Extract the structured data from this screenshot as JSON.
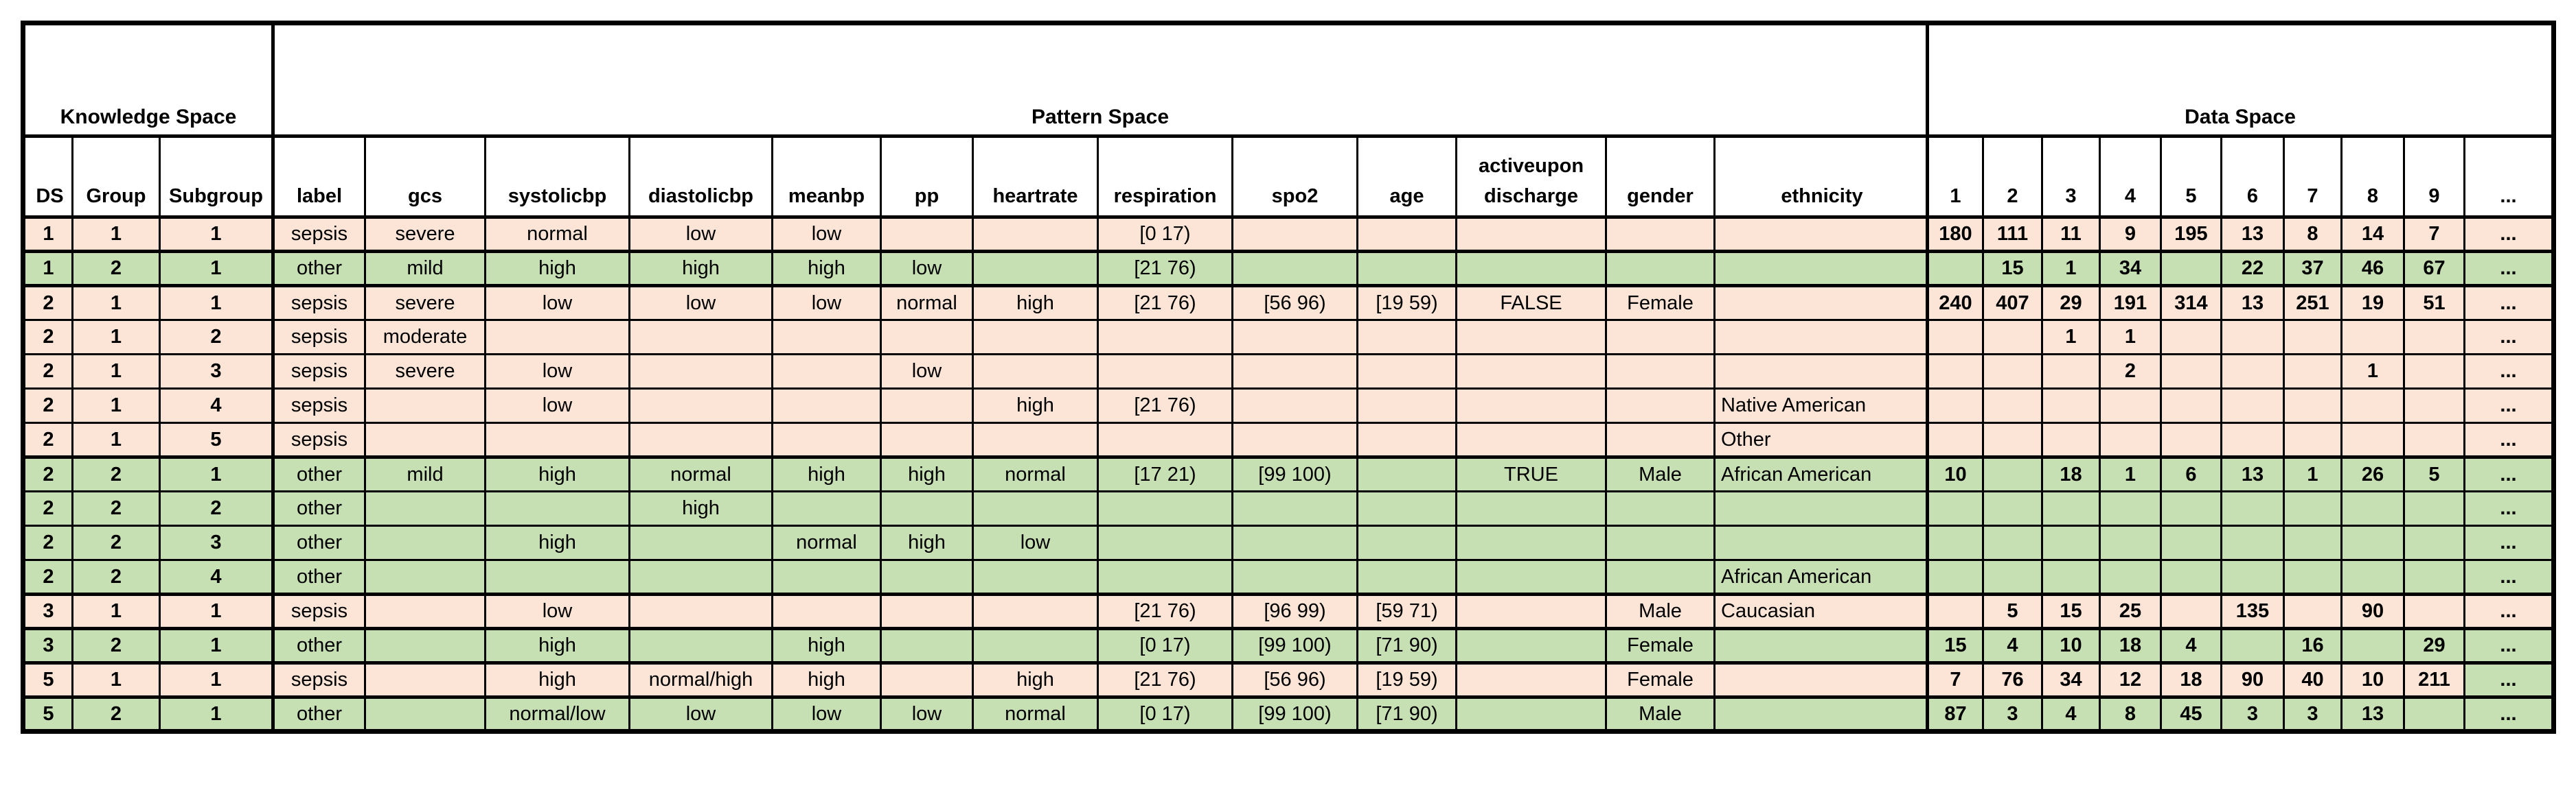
{
  "colors": {
    "sepsis_row": "#fce4d6",
    "other_row": "#c6e0b4",
    "border": "#000000",
    "background": "#ffffff"
  },
  "chart_data": {
    "type": "table",
    "section_headers": [
      {
        "label": "Knowledge Space",
        "colspan": 3
      },
      {
        "label": "Pattern Space",
        "colspan": 13
      },
      {
        "label": "Data Space",
        "colspan": 10
      }
    ],
    "columns": [
      "DS",
      "Group",
      "Subgroup",
      "label",
      "gcs",
      "systolicbp",
      "diastolicbp",
      "meanbp",
      "pp",
      "heartrate",
      "respiration",
      "spo2",
      "age",
      "activeupon\ndischarge",
      "gender",
      "ethnicity",
      "1",
      "2",
      "3",
      "4",
      "5",
      "6",
      "7",
      "8",
      "9",
      "..."
    ],
    "rows": [
      {
        "color": "sepsis",
        "thick_top": true,
        "cells": [
          "1",
          "1",
          "1",
          "sepsis",
          "severe",
          "normal",
          "low",
          "low",
          "",
          "",
          "[0 17)",
          "",
          "",
          "",
          "",
          "",
          "180",
          "111",
          "11",
          "9",
          "195",
          "13",
          "8",
          "14",
          "7",
          "..."
        ]
      },
      {
        "color": "other",
        "thick_top": true,
        "cells": [
          "1",
          "2",
          "1",
          "other",
          "mild",
          "high",
          "high",
          "high",
          "low",
          "",
          "[21 76)",
          "",
          "",
          "",
          "",
          "",
          "",
          "15",
          "1",
          "34",
          "",
          "22",
          "37",
          "46",
          "67",
          "..."
        ]
      },
      {
        "color": "sepsis",
        "thick_top": true,
        "cells": [
          "2",
          "1",
          "1",
          "sepsis",
          "severe",
          "low",
          "low",
          "low",
          "normal",
          "high",
          "[21 76)",
          "[56 96)",
          "[19 59)",
          "FALSE",
          "Female",
          "",
          "240",
          "407",
          "29",
          "191",
          "314",
          "13",
          "251",
          "19",
          "51",
          "..."
        ]
      },
      {
        "color": "sepsis",
        "thick_top": false,
        "cells": [
          "2",
          "1",
          "2",
          "sepsis",
          "moderate",
          "",
          "",
          "",
          "",
          "",
          "",
          "",
          "",
          "",
          "",
          "",
          "",
          "",
          "1",
          "1",
          "",
          "",
          "",
          "",
          "",
          "..."
        ]
      },
      {
        "color": "sepsis",
        "thick_top": false,
        "cells": [
          "2",
          "1",
          "3",
          "sepsis",
          "severe",
          "low",
          "",
          "",
          "low",
          "",
          "",
          "",
          "",
          "",
          "",
          "",
          "",
          "",
          "",
          "2",
          "",
          "",
          "",
          "1",
          "",
          "..."
        ]
      },
      {
        "color": "sepsis",
        "thick_top": false,
        "cells": [
          "2",
          "1",
          "4",
          "sepsis",
          "",
          "low",
          "",
          "",
          "",
          "high",
          "[21 76)",
          "",
          "",
          "",
          "",
          "Native American",
          "",
          "",
          "",
          "",
          "",
          "",
          "",
          "",
          "",
          "..."
        ]
      },
      {
        "color": "sepsis",
        "thick_top": false,
        "cells": [
          "2",
          "1",
          "5",
          "sepsis",
          "",
          "",
          "",
          "",
          "",
          "",
          "",
          "",
          "",
          "",
          "",
          "Other",
          "",
          "",
          "",
          "",
          "",
          "",
          "",
          "",
          "",
          "..."
        ]
      },
      {
        "color": "other",
        "thick_top": true,
        "cells": [
          "2",
          "2",
          "1",
          "other",
          "mild",
          "high",
          "normal",
          "high",
          "high",
          "normal",
          "[17 21)",
          "[99 100)",
          "",
          "TRUE",
          "Male",
          "African American",
          "10",
          "",
          "18",
          "1",
          "6",
          "13",
          "1",
          "26",
          "5",
          "..."
        ]
      },
      {
        "color": "other",
        "thick_top": false,
        "cells": [
          "2",
          "2",
          "2",
          "other",
          "",
          "",
          "high",
          "",
          "",
          "",
          "",
          "",
          "",
          "",
          "",
          "",
          "",
          "",
          "",
          "",
          "",
          "",
          "",
          "",
          "",
          "..."
        ]
      },
      {
        "color": "other",
        "thick_top": false,
        "cells": [
          "2",
          "2",
          "3",
          "other",
          "",
          "high",
          "",
          "normal",
          "high",
          "low",
          "",
          "",
          "",
          "",
          "",
          "",
          "",
          "",
          "",
          "",
          "",
          "",
          "",
          "",
          "",
          "..."
        ]
      },
      {
        "color": "other",
        "thick_top": false,
        "cells": [
          "2",
          "2",
          "4",
          "other",
          "",
          "",
          "",
          "",
          "",
          "",
          "",
          "",
          "",
          "",
          "",
          "African American",
          "",
          "",
          "",
          "",
          "",
          "",
          "",
          "",
          "",
          "..."
        ]
      },
      {
        "color": "sepsis",
        "thick_top": true,
        "cells": [
          "3",
          "1",
          "1",
          "sepsis",
          "",
          "low",
          "",
          "",
          "",
          "",
          "[21 76)",
          "[96 99)",
          "[59 71)",
          "",
          "Male",
          "Caucasian",
          "",
          "5",
          "15",
          "25",
          "",
          "135",
          "",
          "90",
          "",
          "..."
        ]
      },
      {
        "color": "other",
        "thick_top": true,
        "cells": [
          "3",
          "2",
          "1",
          "other",
          "",
          "high",
          "",
          "high",
          "",
          "",
          "[0 17)",
          "[99 100)",
          "[71 90)",
          "",
          "Female",
          "",
          "15",
          "4",
          "10",
          "18",
          "4",
          "",
          "16",
          "",
          "29",
          "..."
        ]
      },
      {
        "color": "sepsis",
        "thick_top": true,
        "cells": [
          "5",
          "1",
          "1",
          "sepsis",
          "",
          "high",
          "normal/high",
          "high",
          "",
          "high",
          "[21 76)",
          "[56 96)",
          "[19 59)",
          "",
          "Female",
          "",
          "7",
          "76",
          "34",
          "12",
          "18",
          "90",
          "40",
          "10",
          "211",
          "..."
        ],
        "cell_color_overrides": {
          "25": "other"
        }
      },
      {
        "color": "other",
        "thick_top": true,
        "cells": [
          "5",
          "2",
          "1",
          "other",
          "",
          "normal/low",
          "low",
          "low",
          "low",
          "normal",
          "[0 17)",
          "[99 100)",
          "[71 90)",
          "",
          "Male",
          "",
          "87",
          "3",
          "4",
          "8",
          "45",
          "3",
          "3",
          "13",
          "",
          "..."
        ]
      }
    ]
  }
}
